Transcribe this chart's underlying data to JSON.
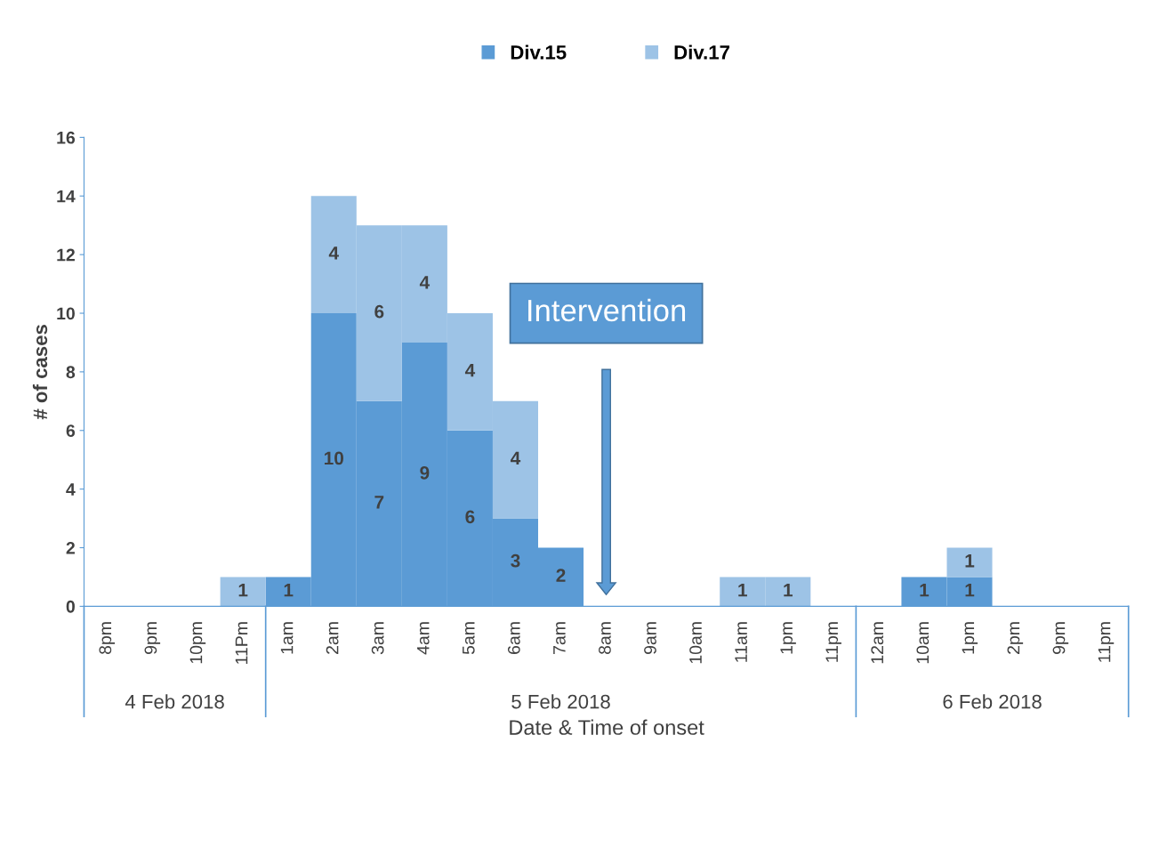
{
  "chart_data": {
    "type": "bar",
    "stacked": true,
    "categories": [
      "8pm",
      "9pm",
      "10pm",
      "11Pm",
      "1am",
      "2am",
      "3am",
      "4am",
      "5am",
      "6am",
      "7am",
      "8am",
      "9am",
      "10am",
      "11am",
      "1pm",
      "11pm",
      "12am",
      "10am",
      "1pm",
      "2pm",
      "9pm",
      "11pm"
    ],
    "series": [
      {
        "name": "Div.15",
        "color": "#5b9bd5",
        "values": [
          0,
          0,
          0,
          0,
          1,
          10,
          7,
          9,
          6,
          3,
          2,
          0,
          0,
          0,
          0,
          0,
          0,
          0,
          1,
          1,
          0,
          0,
          0
        ],
        "value_labels": [
          null,
          null,
          null,
          null,
          "1",
          "10",
          "7",
          "9",
          "6",
          "3",
          "2",
          null,
          null,
          null,
          null,
          null,
          null,
          null,
          "1",
          "1",
          null,
          null,
          null
        ]
      },
      {
        "name": "Div.17",
        "color": "#9dc3e6",
        "values": [
          0,
          0,
          0,
          1,
          0,
          4,
          6,
          4,
          4,
          4,
          0,
          0,
          0,
          0,
          1,
          1,
          0,
          0,
          0,
          1,
          0,
          0,
          0
        ],
        "value_labels": [
          null,
          null,
          null,
          "1",
          null,
          "4",
          "6",
          "4",
          "4",
          "4",
          null,
          null,
          null,
          null,
          "1",
          "1",
          null,
          null,
          null,
          "1",
          null,
          null,
          null
        ]
      }
    ],
    "xlabel": "Date & Time of onset",
    "ylabel": "# of cases",
    "ylim": [
      0,
      16
    ],
    "yticks": [
      0,
      2,
      4,
      6,
      8,
      10,
      12,
      14,
      16
    ],
    "grid": false,
    "legend": "top",
    "annotations": [
      "Intervention",
      "4 Feb 2018",
      "5 Feb 2018",
      "6 Feb 2018"
    ]
  }
}
